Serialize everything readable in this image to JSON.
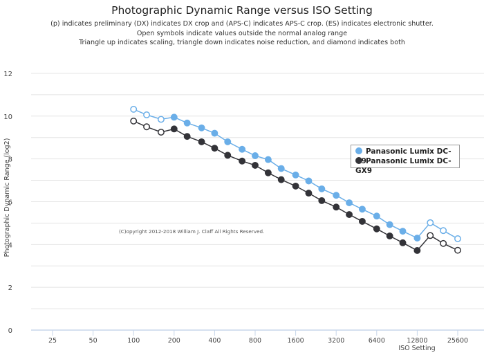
{
  "chart_data": {
    "type": "line",
    "title": "Photographic Dynamic Range versus ISO Setting",
    "subtitles": [
      "(p) indicates preliminary (DX) indicates DX crop and (APS-C) indicates APS-C crop. (ES) indicates electronic shutter.",
      "Open symbols indicate values outside the normal analog range",
      "Triangle up indicates scaling, triangle down indicates noise reduction, and diamond indicates both"
    ],
    "xlabel": "ISO Setting",
    "ylabel": "Photographic Dynamic Range (log2)",
    "xscale": "log2",
    "xticks": [
      25,
      50,
      100,
      200,
      400,
      800,
      1600,
      3200,
      6400,
      12800,
      25600
    ],
    "yticks": [
      0,
      2,
      4,
      6,
      8,
      10,
      12
    ],
    "ylim": [
      0,
      12.5
    ],
    "grid": true,
    "legend_position": "right",
    "annotation": "(C)opyright 2012-2018 William J. Claff All Rights Reserved.",
    "x": [
      100,
      125,
      160,
      200,
      250,
      320,
      400,
      500,
      640,
      800,
      1000,
      1250,
      1600,
      2000,
      2500,
      3200,
      4000,
      5000,
      6400,
      8000,
      10000,
      12800,
      16000,
      20000,
      25600
    ],
    "series": [
      {
        "name": "Panasonic Lumix DC-G9",
        "color": "#6aaee8",
        "values": [
          10.32,
          10.06,
          9.85,
          9.95,
          9.68,
          9.45,
          9.2,
          8.8,
          8.45,
          8.15,
          7.97,
          7.55,
          7.25,
          6.97,
          6.6,
          6.3,
          5.95,
          5.65,
          5.33,
          4.93,
          4.62,
          4.3,
          5.02,
          4.65,
          4.27
        ],
        "open": [
          true,
          true,
          true,
          false,
          false,
          false,
          false,
          false,
          false,
          false,
          false,
          false,
          false,
          false,
          false,
          false,
          false,
          false,
          false,
          false,
          false,
          false,
          true,
          true,
          true
        ]
      },
      {
        "name": "Panasonic Lumix DC-GX9",
        "color": "#333338",
        "values": [
          9.77,
          9.5,
          9.25,
          9.4,
          9.05,
          8.8,
          8.5,
          8.17,
          7.9,
          7.7,
          7.35,
          7.03,
          6.73,
          6.4,
          6.05,
          5.75,
          5.4,
          5.08,
          4.73,
          4.4,
          4.08,
          3.72,
          4.42,
          4.05,
          3.73
        ],
        "open": [
          true,
          true,
          true,
          false,
          false,
          false,
          false,
          false,
          false,
          false,
          false,
          false,
          false,
          false,
          false,
          false,
          false,
          false,
          false,
          false,
          false,
          false,
          true,
          true,
          true
        ]
      }
    ]
  }
}
